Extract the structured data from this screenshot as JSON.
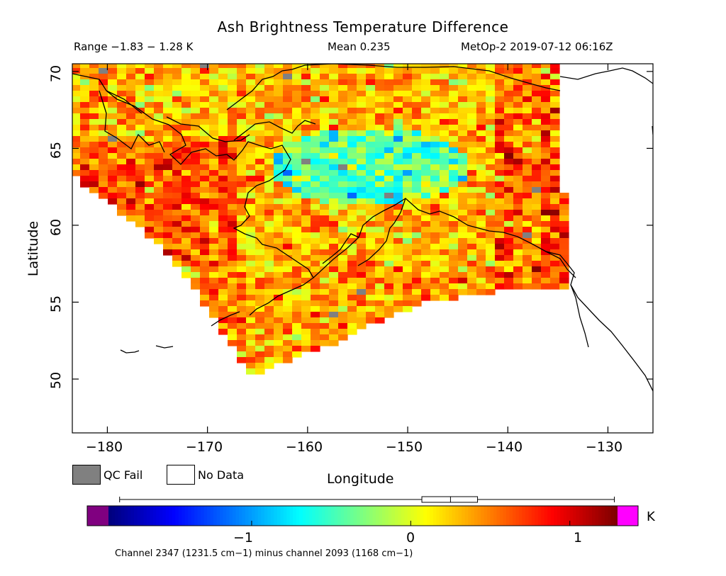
{
  "title": "Ash Brightness Temperature Difference",
  "stats": {
    "range": "Range −1.83 − 1.28 K",
    "mean": "Mean 0.235",
    "satellite_time": "MetOp-2 2019-07-12 06:16Z"
  },
  "axes": {
    "xlabel": "Longitude",
    "ylabel": "Latitude",
    "xticks": [
      "−180",
      "−170",
      "−160",
      "−150",
      "−140",
      "−130"
    ],
    "yticks": [
      "70",
      "65",
      "60",
      "55",
      "50"
    ]
  },
  "legend": {
    "qc_fail": "QC Fail",
    "no_data": "No Data",
    "qc_color": "#808080"
  },
  "colorbar": {
    "unit": "K",
    "ticks": [
      "−1",
      "0",
      "1"
    ],
    "low_out_color": "#800080",
    "high_out_color": "#ff00ff"
  },
  "footer": "Channel 2347 (1231.5 cm−1) minus channel 2093 (1168 cm−1)",
  "chart_data": {
    "type": "heatmap",
    "title": "Ash Brightness Temperature Difference",
    "xlabel": "Longitude",
    "ylabel": "Latitude",
    "xlim": [
      -183.5,
      -125.5
    ],
    "ylim": [
      46.5,
      70.5
    ],
    "value_range": [
      -1.83,
      1.28
    ],
    "mean": 0.235,
    "colorbar_range": [
      -1.9,
      1.3
    ],
    "units": "K",
    "colormap": [
      "#00007f",
      "#0000ff",
      "#007fff",
      "#00ffff",
      "#7fff7f",
      "#ffff00",
      "#ff7f00",
      "#ff0000",
      "#7f0000"
    ],
    "boxplot": {
      "min": -1.83,
      "q1": 0.07,
      "median": 0.25,
      "q3": 0.42,
      "max": 1.28
    },
    "swath_extent": {
      "lon_min": -184,
      "lon_max": -134,
      "lat_min": 50.5,
      "lat_max": 70.5
    }
  }
}
